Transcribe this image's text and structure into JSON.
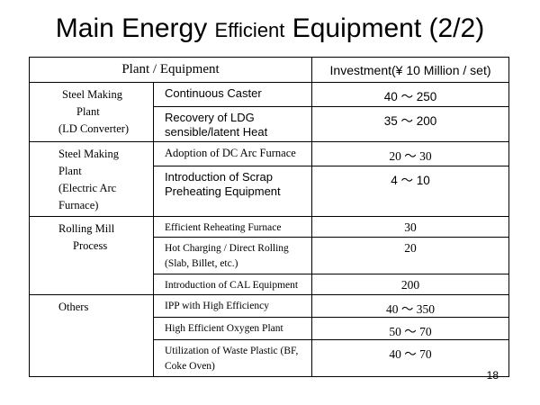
{
  "slide": {
    "title_part1": "Main Energy ",
    "title_part2": "Efficient",
    "title_part3": " Equipment (2/2)",
    "page_number": "18"
  },
  "table": {
    "header_plant": "Plant / Equipment",
    "header_investment": "Investment(¥ 10 Million / set)",
    "groups": [
      {
        "plant_lines": [
          "Steel Making",
          "Plant",
          "(LD Converter)"
        ],
        "rows": [
          {
            "equipment": "Continuous Caster",
            "investment": "40 ～ 250"
          },
          {
            "equipment": "Recovery of LDG sensible/latent Heat",
            "investment": "35 ～ 200"
          }
        ]
      },
      {
        "plant_lines": [
          "Steel Making",
          "Plant",
          "(Electric Arc",
          "Furnace)"
        ],
        "rows": [
          {
            "equipment": "Adoption of DC Arc Furnace",
            "investment": "20 ～ 30"
          },
          {
            "equipment": "Introduction of Scrap Preheating Equipment",
            "investment": "4 ～ 10"
          }
        ]
      },
      {
        "plant_lines": [
          "Rolling Mill",
          "Process"
        ],
        "rows": [
          {
            "equipment": "Efficient Reheating Furnace",
            "investment": "30"
          },
          {
            "equipment": "Hot Charging / Direct Rolling (Slab, Billet, etc.)",
            "investment": "20"
          },
          {
            "equipment": "Introduction of CAL Equipment",
            "investment": "200"
          }
        ]
      },
      {
        "plant_lines": [
          "Others"
        ],
        "rows": [
          {
            "equipment": "IPP with High Efficiency",
            "investment": "40 ～ 350"
          },
          {
            "equipment": "High Efficient Oxygen Plant",
            "investment": "50 ～ 70"
          },
          {
            "equipment": "Utilization of Waste Plastic (BF, Coke Oven)",
            "investment": "40 ～ 70"
          }
        ]
      }
    ]
  }
}
